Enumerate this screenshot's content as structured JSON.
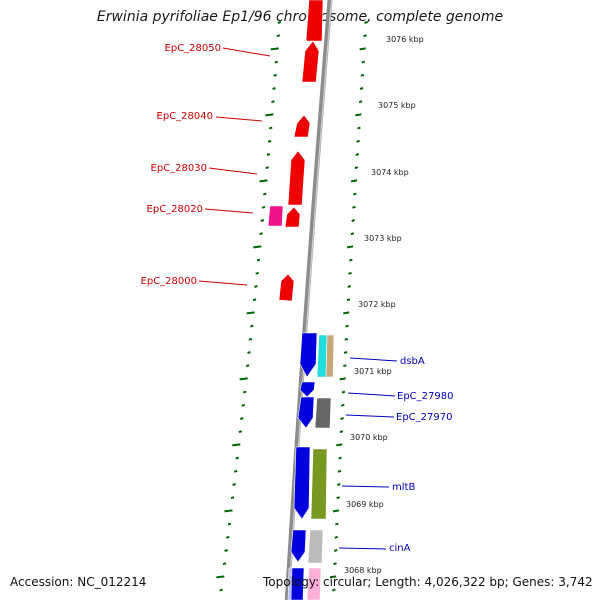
{
  "title": "Erwinia pyrifoliae Ep1/96 chromosome, complete genome",
  "footer": {
    "accession": "Accession: NC_012214",
    "topology": "Topology: circular; Length: 4,026,322 bp; Genes: 3,742"
  },
  "colors": {
    "reverse_gene": "#ee0000",
    "forward_gene": "#0000dd",
    "reverse_label": "#cc0000",
    "forward_label": "#0000bb",
    "tick_marks": "#006600",
    "backbone": "#8c8c8c",
    "magenta_feature": "#ee1188",
    "cyan_feature": "#22dddd",
    "tan_feature": "#c8a878",
    "gray_feature": "#666666",
    "olive_feature": "#779922",
    "lightgray_feature": "#bbbbbb",
    "pink_feature": "#ffb0d8",
    "lavender_feature": "#b8b8ff"
  },
  "kbp_labels": [
    "3076 kbp",
    "3075 kbp",
    "3074 kbp",
    "3073 kbp",
    "3072 kbp",
    "3071 kbp",
    "3070 kbp",
    "3069 kbp",
    "3068 kbp"
  ],
  "reverse_gene_labels": [
    "EpC_28050",
    "EpC_28040",
    "EpC_28030",
    "EpC_28020",
    "EpC_28000"
  ],
  "forward_gene_labels": [
    "dsbA",
    "EpC_27980",
    "EpC_27970",
    "mltB",
    "cinA"
  ]
}
